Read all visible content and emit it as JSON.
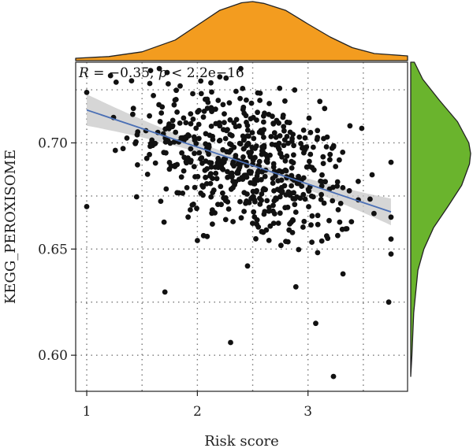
{
  "chart_data": {
    "type": "scatter",
    "xlabel": "Risk score",
    "ylabel": "KEGG_PEROXISOME",
    "annotation": "R = −0.35, p < 2.2e−16",
    "annotation_parts": [
      "R",
      " = −0.35, ",
      "p",
      " < 2.2e−16"
    ],
    "xlim": [
      0.9,
      3.9
    ],
    "ylim": [
      0.583,
      0.738
    ],
    "x_ticks": [
      1,
      2,
      3
    ],
    "x_tick_labels": [
      "1",
      "2",
      "3"
    ],
    "y_ticks": [
      0.6,
      0.65,
      0.7
    ],
    "y_tick_labels": [
      "0.60",
      "0.65",
      "0.70"
    ],
    "x_minor_ticks": [
      1.5,
      2.5,
      3.5
    ],
    "y_minor_ticks": [
      0.625,
      0.675,
      0.725
    ],
    "grid": "dotted",
    "n_points": 600,
    "point_color": "#111111",
    "regression": {
      "x": [
        1.0,
        3.75
      ],
      "y": [
        0.7155,
        0.6675
      ],
      "line_color": "#4a6fb5",
      "ci_color": "#c8c8c8"
    },
    "top_density": {
      "color": "#f39c1f",
      "x": [
        0.9,
        1.2,
        1.5,
        1.8,
        2.0,
        2.2,
        2.4,
        2.5,
        2.6,
        2.8,
        3.0,
        3.2,
        3.4,
        3.6,
        3.75,
        3.9
      ],
      "density": [
        0.04,
        0.07,
        0.15,
        0.35,
        0.6,
        0.85,
        0.98,
        1.0,
        0.97,
        0.85,
        0.62,
        0.4,
        0.22,
        0.12,
        0.1,
        0.08
      ]
    },
    "right_density": {
      "color": "#6ab42d",
      "y": [
        0.59,
        0.6,
        0.62,
        0.64,
        0.65,
        0.66,
        0.67,
        0.68,
        0.69,
        0.695,
        0.7,
        0.71,
        0.72,
        0.73,
        0.738
      ],
      "density": [
        0.0,
        0.02,
        0.05,
        0.12,
        0.22,
        0.38,
        0.62,
        0.85,
        0.98,
        1.0,
        0.97,
        0.78,
        0.48,
        0.2,
        0.06
      ]
    }
  }
}
